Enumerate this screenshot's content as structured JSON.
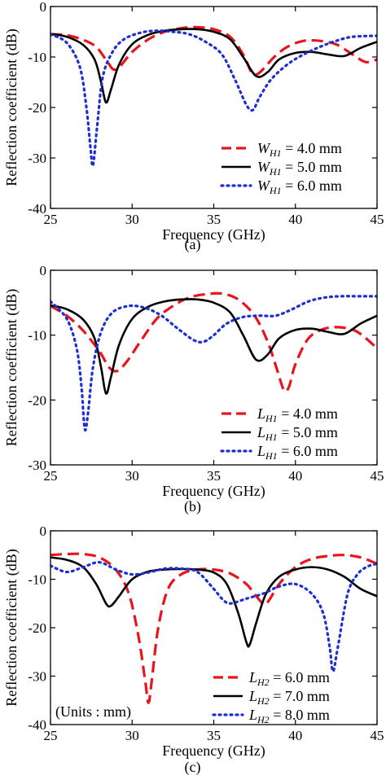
{
  "chart_data": [
    {
      "type": "line",
      "panel_label": "(a)",
      "xlabel": "Frequency (GHz)",
      "ylabel": "Reflection coefficient (dB)",
      "xlim": [
        25,
        45
      ],
      "ylim": [
        -40,
        0
      ],
      "xticks": [
        25,
        30,
        35,
        40,
        45
      ],
      "yticks": [
        0,
        -10,
        -20,
        -30,
        -40
      ],
      "legend_position": "lower-right",
      "annotation": "",
      "series": [
        {
          "name_symbol": "W",
          "name_sub": "H1",
          "name_value": "= 4.0 mm",
          "color": "#e8141e",
          "dash": "dashed",
          "x": [
            25,
            26,
            27,
            27.8,
            28.4,
            29,
            30,
            31,
            32,
            33,
            34,
            35,
            36,
            36.8,
            37.3,
            37.6,
            38,
            38.7,
            39.5,
            40.5,
            41.5,
            42.5,
            43.5,
            44.3,
            45
          ],
          "y": [
            -5.5,
            -5.7,
            -6.6,
            -8,
            -10.5,
            -12.5,
            -9,
            -6.5,
            -5,
            -4.3,
            -4.1,
            -4.5,
            -6,
            -9.5,
            -13,
            -13.5,
            -12.5,
            -10,
            -8,
            -6.8,
            -6.8,
            -7.5,
            -9.5,
            -11,
            -10.5
          ]
        },
        {
          "name_symbol": "W",
          "name_sub": "H1",
          "name_value": "= 5.0 mm",
          "color": "#000000",
          "dash": "solid",
          "x": [
            25,
            26,
            27,
            27.7,
            28.1,
            28.4,
            28.7,
            29.2,
            30,
            31,
            32,
            33,
            34,
            35,
            36,
            36.8,
            37.6,
            38.3,
            39,
            40,
            41,
            42,
            43,
            44,
            45
          ],
          "y": [
            -5.4,
            -6,
            -7.6,
            -10.5,
            -15,
            -19,
            -16.5,
            -11.5,
            -7.5,
            -5.6,
            -4.8,
            -4.5,
            -4.5,
            -5,
            -6.5,
            -10,
            -13.8,
            -13,
            -10.5,
            -9.2,
            -9,
            -9.5,
            -9.8,
            -8.2,
            -7
          ]
        },
        {
          "name_symbol": "W",
          "name_sub": "H1",
          "name_value": "= 6.0 mm",
          "color": "#1e2fd2",
          "dash": "dotted",
          "x": [
            25,
            26,
            26.8,
            27.2,
            27.45,
            27.6,
            27.85,
            28.2,
            28.8,
            29.5,
            30.5,
            31.5,
            32.5,
            33.5,
            34.5,
            35.5,
            36.3,
            37,
            37.4,
            37.8,
            38.5,
            39.5,
            40.5,
            41.5,
            42.5,
            43.5,
            45
          ],
          "y": [
            -5.5,
            -7.2,
            -12,
            -20,
            -28,
            -31.5,
            -24,
            -14,
            -9,
            -6.5,
            -5.2,
            -4.8,
            -5,
            -5.5,
            -7,
            -9.5,
            -14.5,
            -19.5,
            -20.5,
            -18,
            -14.5,
            -11.5,
            -9.5,
            -8,
            -6.8,
            -6,
            -5.8
          ]
        }
      ]
    },
    {
      "type": "line",
      "panel_label": "(b)",
      "xlabel": "Frequency (GHz)",
      "ylabel": "Reflection coefficient (dB)",
      "xlim": [
        25,
        45
      ],
      "ylim": [
        -30,
        0
      ],
      "xticks": [
        25,
        30,
        35,
        40,
        45
      ],
      "yticks": [
        0,
        -10,
        -20,
        -30
      ],
      "legend_position": "lower-right",
      "annotation": "",
      "series": [
        {
          "name_symbol": "L",
          "name_sub": "H1",
          "name_value": "= 4.0 mm",
          "color": "#e8141e",
          "dash": "dashed",
          "x": [
            25,
            26,
            27,
            28,
            28.6,
            29.1,
            29.7,
            30.5,
            31.5,
            32.5,
            33.5,
            34.5,
            35.5,
            36.5,
            37.5,
            38.3,
            38.9,
            39.3,
            39.6,
            40,
            40.8,
            41.8,
            42.8,
            43.8,
            45
          ],
          "y": [
            -5.5,
            -7,
            -9.3,
            -12.5,
            -15,
            -15.5,
            -14,
            -11,
            -7.5,
            -5.5,
            -4.2,
            -3.7,
            -3.6,
            -4.5,
            -7,
            -11,
            -15.5,
            -18.5,
            -18,
            -14.5,
            -10.5,
            -9,
            -8.8,
            -9.5,
            -12
          ]
        },
        {
          "name_symbol": "L",
          "name_sub": "H1",
          "name_value": "= 5.0 mm",
          "color": "#000000",
          "dash": "solid",
          "x": [
            25,
            26,
            27,
            27.7,
            28.1,
            28.4,
            28.7,
            29.2,
            30,
            31,
            32,
            33,
            34,
            35,
            36,
            36.8,
            37.6,
            38.3,
            39,
            40,
            41,
            42,
            43,
            44,
            45
          ],
          "y": [
            -5.4,
            -6,
            -7.6,
            -10.5,
            -15,
            -19,
            -16.5,
            -11.5,
            -7.5,
            -5.6,
            -4.8,
            -4.5,
            -4.5,
            -5,
            -6.5,
            -10,
            -13.8,
            -13,
            -10.5,
            -9.2,
            -9,
            -9.5,
            -9.8,
            -8.2,
            -7
          ]
        },
        {
          "name_symbol": "L",
          "name_sub": "H1",
          "name_value": "= 6.0 mm",
          "color": "#1e2fd2",
          "dash": "dotted",
          "x": [
            25,
            26,
            26.6,
            26.9,
            27.1,
            27.3,
            27.6,
            28.1,
            28.8,
            29.8,
            30.8,
            31.8,
            32.8,
            33.8,
            34.4,
            35,
            35.8,
            36.8,
            37.8,
            38.8,
            39.8,
            40.8,
            41.8,
            42.8,
            43.8,
            45
          ],
          "y": [
            -4.8,
            -7.5,
            -12,
            -18,
            -24.5,
            -22,
            -15,
            -9.5,
            -6.5,
            -5.5,
            -5.8,
            -7,
            -9,
            -10.8,
            -11,
            -10,
            -8.2,
            -7.2,
            -7,
            -7,
            -6,
            -4.8,
            -4.2,
            -4,
            -4,
            -4
          ]
        }
      ]
    },
    {
      "type": "line",
      "panel_label": "(c)",
      "xlabel": "Frequency (GHz)",
      "ylabel": "Reflection coefficient (dB)",
      "xlim": [
        25,
        45
      ],
      "ylim": [
        -40,
        0
      ],
      "xticks": [
        25,
        30,
        35,
        40,
        45
      ],
      "yticks": [
        0,
        -10,
        -20,
        -30,
        -40
      ],
      "legend_position": "lower-right",
      "annotation": "(Units : mm)",
      "series": [
        {
          "name_symbol": "L",
          "name_sub": "H2",
          "name_value": "= 6.0 mm",
          "color": "#e8141e",
          "dash": "dashed",
          "x": [
            25,
            26,
            27,
            28,
            29,
            29.8,
            30.4,
            30.8,
            31,
            31.2,
            31.6,
            32.2,
            33,
            34,
            35,
            36,
            37,
            37.6,
            38.2,
            39,
            40,
            41,
            42,
            43,
            44,
            45
          ],
          "y": [
            -5,
            -4.8,
            -4.8,
            -5.5,
            -8,
            -13,
            -22,
            -31,
            -35.5,
            -31,
            -20,
            -12,
            -9,
            -8,
            -8,
            -8.8,
            -11,
            -13.5,
            -15,
            -11,
            -7.5,
            -5.8,
            -5.2,
            -5,
            -5.5,
            -6.8
          ]
        },
        {
          "name_symbol": "L",
          "name_sub": "H2",
          "name_value": "= 7.0 mm",
          "color": "#000000",
          "dash": "solid",
          "x": [
            25,
            26,
            27,
            27.8,
            28.4,
            28.7,
            29.2,
            30,
            31,
            32,
            33,
            34,
            35,
            35.8,
            36.5,
            37,
            37.2,
            37.6,
            38.2,
            39,
            40,
            41,
            42,
            43,
            44,
            45
          ],
          "y": [
            -5.5,
            -6,
            -7.5,
            -11,
            -15,
            -15.5,
            -13.5,
            -10,
            -8.4,
            -8,
            -7.9,
            -8,
            -8.6,
            -11,
            -17,
            -23,
            -23.5,
            -19,
            -13,
            -9.5,
            -8,
            -7.5,
            -8,
            -9.5,
            -12,
            -13.5
          ]
        },
        {
          "name_symbol": "L",
          "name_sub": "H2",
          "name_value": "= 8.0 mm",
          "color": "#1e2fd2",
          "dash": "dotted",
          "x": [
            25,
            26,
            27,
            28,
            29,
            30,
            31,
            32,
            33,
            34,
            35,
            35.5,
            36,
            37,
            38,
            39,
            40,
            41,
            41.7,
            42.1,
            42.3,
            42.6,
            43.2,
            43.8,
            44.4,
            45
          ],
          "y": [
            -7.2,
            -8.5,
            -7.5,
            -6.5,
            -8,
            -9,
            -8.6,
            -7.8,
            -7.8,
            -8.5,
            -12,
            -14,
            -15,
            -14,
            -13,
            -11.5,
            -11,
            -13,
            -17,
            -24,
            -29,
            -24,
            -13,
            -9,
            -7.4,
            -6.8
          ]
        }
      ]
    }
  ]
}
